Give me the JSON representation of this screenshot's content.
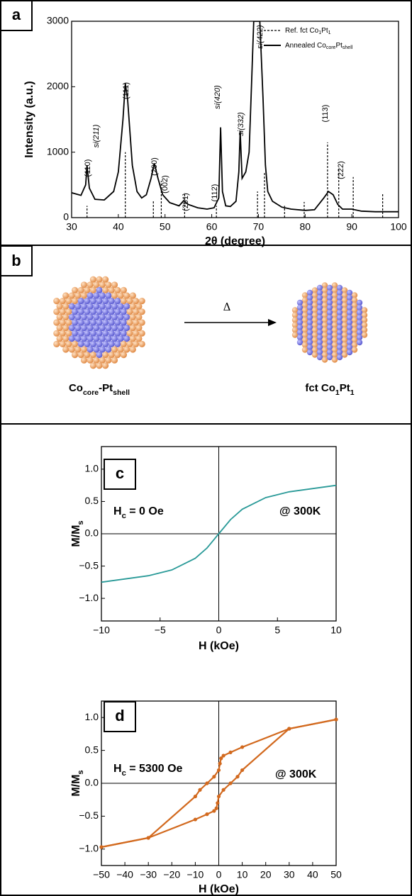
{
  "chart_data": [
    {
      "type": "line",
      "panel_label": "a",
      "xlabel": "2θ (degree)",
      "ylabel": "Intensity (a.u.)",
      "xlim": [
        30,
        100
      ],
      "ylim": [
        0,
        3000
      ],
      "xticks": [
        30,
        40,
        50,
        60,
        70,
        80,
        90,
        100
      ],
      "yticks": [
        0,
        1000,
        2000,
        3000
      ],
      "series": [
        {
          "name": [
            "Ref. fct Co",
            "1",
            "Pt",
            "1"
          ],
          "color": "#000000",
          "style": "stem",
          "x": [
            33.3,
            41.5,
            47.5,
            49.2,
            54.2,
            61.0,
            69.8,
            71.3,
            75.6,
            79.8,
            84.8,
            87.2,
            90.3,
            96.6
          ],
          "values": [
            180,
            1000,
            250,
            560,
            380,
            180,
            400,
            690,
            180,
            240,
            1150,
            750,
            620,
            360
          ]
        },
        {
          "name": [
            "Annealed Co",
            "core",
            "Pt",
            "shell"
          ],
          "color": "#000000",
          "style": "line",
          "x": [
            30,
            31,
            32,
            33,
            33.3,
            33.8,
            35,
            37,
            39,
            40,
            41,
            41.5,
            42,
            43,
            44,
            45,
            46,
            47,
            47.7,
            48.5,
            49.5,
            51,
            53,
            54,
            55,
            57,
            59,
            60.5,
            61.5,
            61.9,
            62.3,
            63,
            64,
            65.2,
            65.8,
            66.1,
            66.5,
            67.3,
            68,
            68.5,
            69,
            70.3,
            71,
            71.5,
            72,
            73,
            75,
            77,
            80,
            82,
            84,
            85,
            86,
            87,
            88,
            90,
            92,
            95,
            100
          ],
          "values": [
            380,
            360,
            340,
            500,
            800,
            450,
            280,
            270,
            400,
            700,
            1500,
            2050,
            1800,
            800,
            400,
            300,
            350,
            600,
            830,
            600,
            350,
            230,
            180,
            260,
            200,
            150,
            130,
            150,
            300,
            1380,
            400,
            180,
            170,
            250,
            700,
            1320,
            600,
            700,
            1000,
            2000,
            3000,
            3000,
            1800,
            800,
            400,
            250,
            160,
            130,
            110,
            120,
            300,
            400,
            350,
            200,
            130,
            130,
            100,
            90,
            90
          ]
        }
      ],
      "annotations": [
        "(110)",
        "si(211)",
        "(111)",
        "(200)",
        "(002)",
        "(201)",
        "(112)",
        "si(420)",
        "si(332)",
        "si(422)",
        "(113)",
        "(222)"
      ]
    },
    {
      "type": "line",
      "panel_label": "c",
      "xlabel": "H (kOe)",
      "ylabel": [
        "M/M",
        "s"
      ],
      "zero_lines": true,
      "xlim": [
        -10,
        10
      ],
      "ylim": [
        -1.35,
        1.35
      ],
      "xticks": [
        {
          "value": -10,
          "label": "−10"
        },
        {
          "value": -5,
          "label": "−5"
        },
        0,
        5,
        10
      ],
      "yticks": [
        {
          "value": 1,
          "label": "1.0"
        },
        0.5,
        {
          "value": 0,
          "label": "0.0"
        },
        {
          "value": -0.5,
          "label": "−0.5"
        },
        {
          "value": -1,
          "label": "−1.0"
        }
      ],
      "series": [
        {
          "color": "#2a9a98",
          "style": "line",
          "x": [
            -10,
            -6,
            -4,
            -2,
            -1,
            0,
            1,
            2,
            4,
            6,
            10
          ],
          "values": [
            -0.75,
            -0.65,
            -0.56,
            -0.38,
            -0.22,
            0,
            0.22,
            0.38,
            0.56,
            0.65,
            0.75
          ]
        }
      ],
      "annotations": [
        [
          "H",
          "c",
          " = 0 Oe"
        ],
        [
          "@ 300K"
        ]
      ]
    },
    {
      "type": "line",
      "panel_label": "d",
      "xlabel": "H (kOe)",
      "ylabel": [
        "M/M",
        "s"
      ],
      "zero_lines": true,
      "xlim": [
        -50,
        50
      ],
      "ylim": [
        -1.25,
        1.25
      ],
      "xticks": [
        {
          "value": -50,
          "label": "−50"
        },
        {
          "value": -40,
          "label": "−40"
        },
        {
          "value": -30,
          "label": "−30"
        },
        {
          "value": -20,
          "label": "−20"
        },
        {
          "value": -10,
          "label": "−10"
        },
        0,
        10,
        20,
        30,
        40,
        50
      ],
      "yticks": [
        {
          "value": 1,
          "label": "1.0"
        },
        0.5,
        {
          "value": 0,
          "label": "0.0"
        },
        {
          "value": -0.5,
          "label": "−0.5"
        },
        {
          "value": -1,
          "label": "−1.0"
        }
      ],
      "series": [
        {
          "color": "#d2691e",
          "style": "line",
          "markers": true,
          "x": [
            50,
            30,
            10,
            5,
            2,
            1,
            0.5,
            0,
            -2,
            -5,
            -8,
            -10,
            -30,
            -50
          ],
          "values": [
            0.97,
            0.83,
            0.55,
            0.47,
            0.42,
            0.38,
            0.3,
            0.2,
            0.1,
            0.0,
            -0.1,
            -0.2,
            -0.83,
            -0.97
          ]
        },
        {
          "color": "#d2691e",
          "style": "line",
          "markers": true,
          "x": [
            -50,
            -30,
            -10,
            -5,
            -2,
            -1,
            -0.5,
            0,
            2,
            5,
            8,
            10,
            30,
            50
          ],
          "values": [
            -0.97,
            -0.83,
            -0.55,
            -0.47,
            -0.42,
            -0.38,
            -0.3,
            -0.2,
            -0.1,
            0.0,
            0.1,
            0.2,
            0.83,
            0.97
          ]
        }
      ],
      "annotations": [
        [
          "H",
          "c",
          " = 5300 Oe"
        ],
        [
          "@ 300K"
        ]
      ]
    }
  ],
  "diagram": {
    "panel_label": "b",
    "arrow_label": "Δ",
    "left_label": [
      "Co",
      "core",
      "-Pt",
      "shell"
    ],
    "right_label": [
      "fct Co",
      "1",
      "Pt",
      "1"
    ]
  }
}
